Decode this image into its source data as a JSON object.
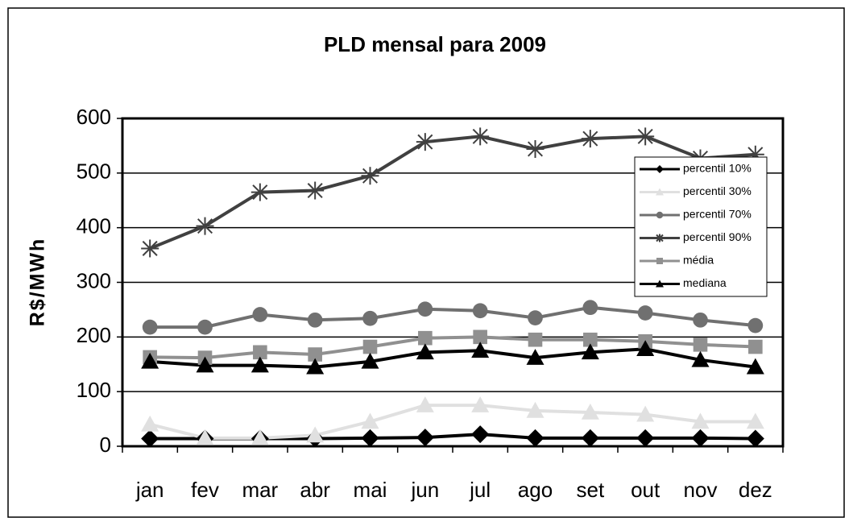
{
  "chart_data": {
    "type": "line",
    "title": "PLD mensal para 2009",
    "y_label": "R$/MWh",
    "categories": [
      "jan",
      "fev",
      "mar",
      "abr",
      "mai",
      "jun",
      "jul",
      "ago",
      "set",
      "out",
      "nov",
      "dez"
    ],
    "series": [
      {
        "name": "percentil 10%",
        "color": "#000000",
        "marker": "diamond",
        "values": [
          14,
          14,
          14,
          14,
          15,
          16,
          22,
          15,
          15,
          15,
          15,
          14
        ]
      },
      {
        "name": "percentil 30%",
        "color": "#e0e0e0",
        "marker": "triangle",
        "values": [
          40,
          15,
          15,
          20,
          45,
          75,
          75,
          65,
          62,
          58,
          45,
          45
        ]
      },
      {
        "name": "percentil 70%",
        "color": "#707070",
        "marker": "circle",
        "values": [
          218,
          218,
          241,
          231,
          234,
          251,
          248,
          235,
          254,
          244,
          231,
          221
        ]
      },
      {
        "name": "percentil 90%",
        "color": "#404040",
        "marker": "asterisk",
        "values": [
          362,
          403,
          465,
          468,
          495,
          557,
          567,
          544,
          563,
          567,
          527,
          534
        ]
      },
      {
        "name": "média",
        "color": "#909090",
        "marker": "square",
        "values": [
          163,
          162,
          172,
          168,
          182,
          198,
          200,
          195,
          195,
          192,
          186,
          182
        ]
      },
      {
        "name": "mediana",
        "color": "#000000",
        "marker": "triangle",
        "values": [
          155,
          148,
          148,
          145,
          155,
          172,
          175,
          162,
          172,
          178,
          158,
          145
        ]
      }
    ],
    "ylim": [
      0,
      600
    ],
    "yticks": [
      0,
      100,
      200,
      300,
      400,
      500,
      600
    ],
    "grid": true,
    "legend": "upper right"
  }
}
